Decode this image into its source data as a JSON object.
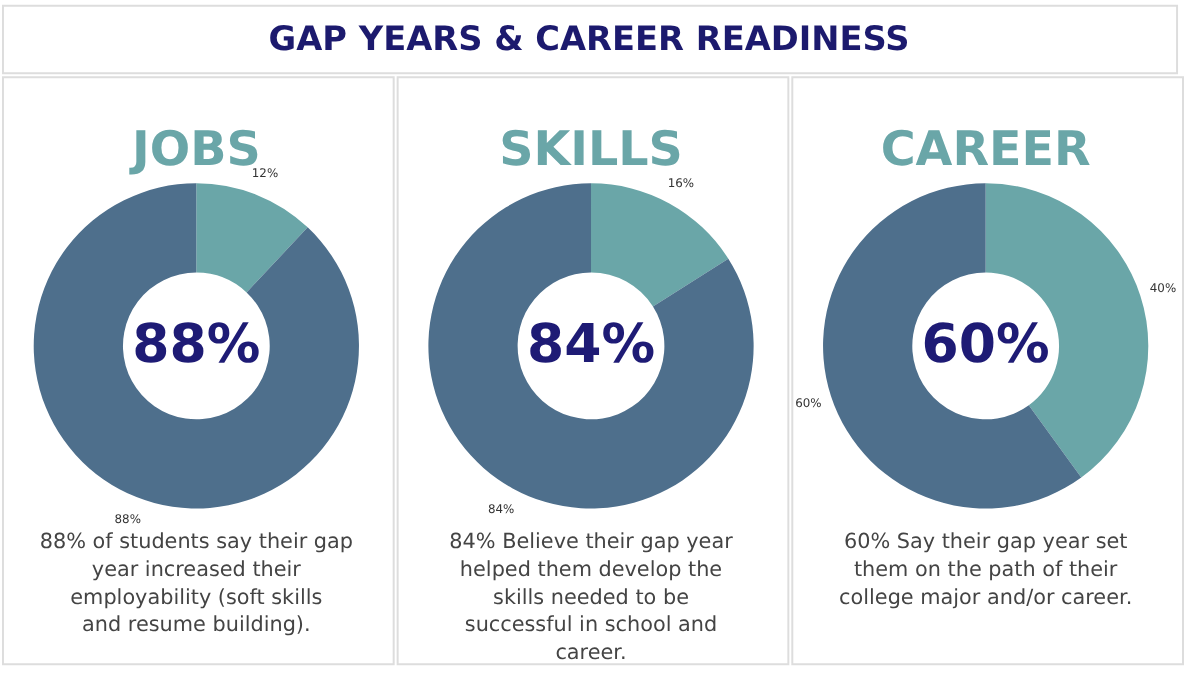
{
  "chart_data": [
    {
      "type": "other",
      "title": "GAP YEARS & CAREER READINESS"
    },
    {
      "type": "donut",
      "title": "JOBS",
      "categories": [
        null,
        null
      ],
      "values": [
        12,
        88
      ],
      "colors": [
        "#6aa6a8",
        "#4e6f8c"
      ],
      "value_labels": [
        "12%",
        "88%"
      ],
      "annotations": [
        "88%",
        "88% of students say their gap year increased their employability (soft skills and resume building)."
      ]
    },
    {
      "type": "donut",
      "title": "SKILLS",
      "categories": [
        null,
        null
      ],
      "values": [
        16,
        84
      ],
      "colors": [
        "#6aa6a8",
        "#4e6f8c"
      ],
      "value_labels": [
        "16%",
        "84%"
      ],
      "annotations": [
        "84%",
        "84% Believe their gap year helped them develop the skills needed to be successful in school and career."
      ]
    },
    {
      "type": "donut",
      "title": "CAREER",
      "categories": [
        null,
        null
      ],
      "values": [
        40,
        60
      ],
      "colors": [
        "#6aa6a8",
        "#4e6f8c"
      ],
      "value_labels": [
        "40%",
        "60%"
      ],
      "annotations": [
        "60%",
        "60% Say their gap year set them on the path of their college major and/or career."
      ]
    }
  ]
}
